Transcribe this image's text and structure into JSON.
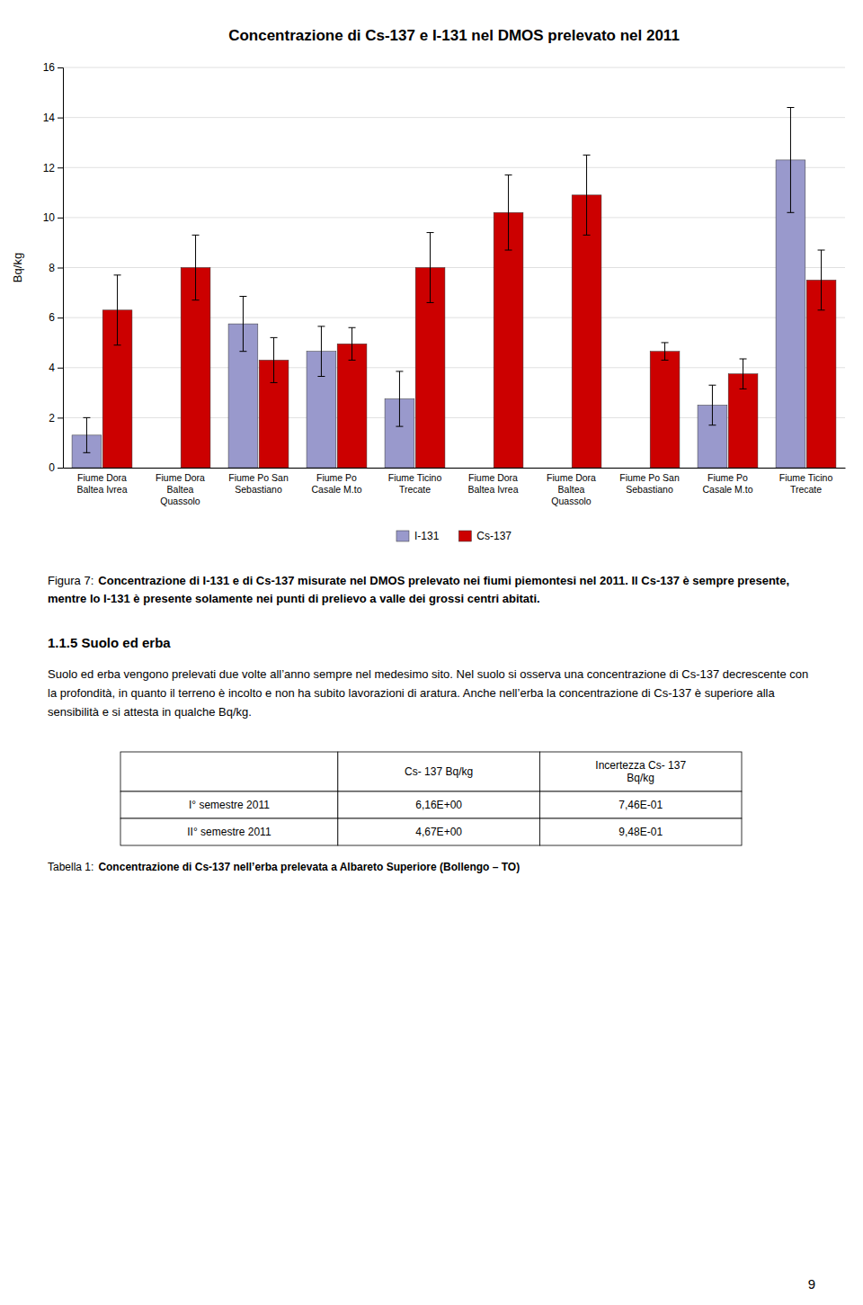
{
  "chart_data": {
    "type": "bar",
    "title": "Concentrazione di Cs-137 e I-131 nel DMOS prelevato nel 2011",
    "ylabel": "Bq/kg",
    "categories": [
      "Fiume Dora\nBaltea Ivrea",
      "Fiume Dora\nBaltea\nQuassolo",
      "Fiume Po San\nSebastiano",
      "Fiume Po\nCasale M.to",
      "Fiume Ticino\nTrecate",
      "Fiume Dora\nBaltea Ivrea",
      "Fiume Dora\nBaltea\nQuassolo",
      "Fiume Po San\nSebastiano",
      "Fiume Po\nCasale M.to",
      "Fiume Ticino\nTrecate"
    ],
    "series": [
      {
        "name": "I-131",
        "color": "#9999CC",
        "values": [
          1.3,
          0.0,
          5.75,
          4.65,
          2.75,
          0.0,
          0.0,
          0.0,
          2.5,
          12.3
        ],
        "errors": [
          0.7,
          0.0,
          1.1,
          1.0,
          1.1,
          0.0,
          0.0,
          0.0,
          0.8,
          2.1
        ]
      },
      {
        "name": "Cs-137",
        "color": "#CC0000",
        "values": [
          6.3,
          8.0,
          4.3,
          4.95,
          8.0,
          10.2,
          10.9,
          4.65,
          3.75,
          7.5
        ],
        "errors": [
          1.4,
          1.3,
          0.9,
          0.65,
          1.4,
          1.5,
          1.6,
          0.35,
          0.6,
          1.2
        ]
      }
    ],
    "ylim": [
      0,
      16
    ],
    "yticks": [
      0,
      2,
      4,
      6,
      8,
      10,
      12,
      14,
      16
    ],
    "grid": true,
    "legend": "bottom"
  },
  "figure_caption_label": "Figura 7:",
  "figure_caption": "Concentrazione di I-131 e di Cs-137 misurate nel DMOS prelevato nei fiumi piemontesi nel 2011. Il Cs-137 è sempre presente, mentre lo I-131 è presente solamente nei punti di prelievo a valle dei grossi centri abitati.",
  "section_title": "1.1.5 Suolo ed erba",
  "section_text": "Suolo ed erba vengono prelevati due volte all’anno sempre nel medesimo sito. Nel suolo si osserva una concentrazione di Cs-137 decrescente con la profondità, in quanto il terreno è incolto e non ha subito lavorazioni di aratura. Anche nell’erba la concentrazione di Cs-137 è superiore alla sensibilità e si attesta in qualche Bq/kg.",
  "table": {
    "columns": [
      null,
      "Cs- 137 Bq/kg",
      "Incertezza Cs- 137\nBq/kg"
    ],
    "rows": [
      [
        "I° semestre 2011",
        "6,16E+00",
        "7,46E-01"
      ],
      [
        "II° semestre 2011",
        "4,67E+00",
        "9,48E-01"
      ]
    ]
  },
  "table_caption_label": "Tabella 1:",
  "table_caption": "Concentrazione di Cs-137 nell’erba prelevata a Albareto Superiore (Bollengo – TO)",
  "page_number": "9"
}
